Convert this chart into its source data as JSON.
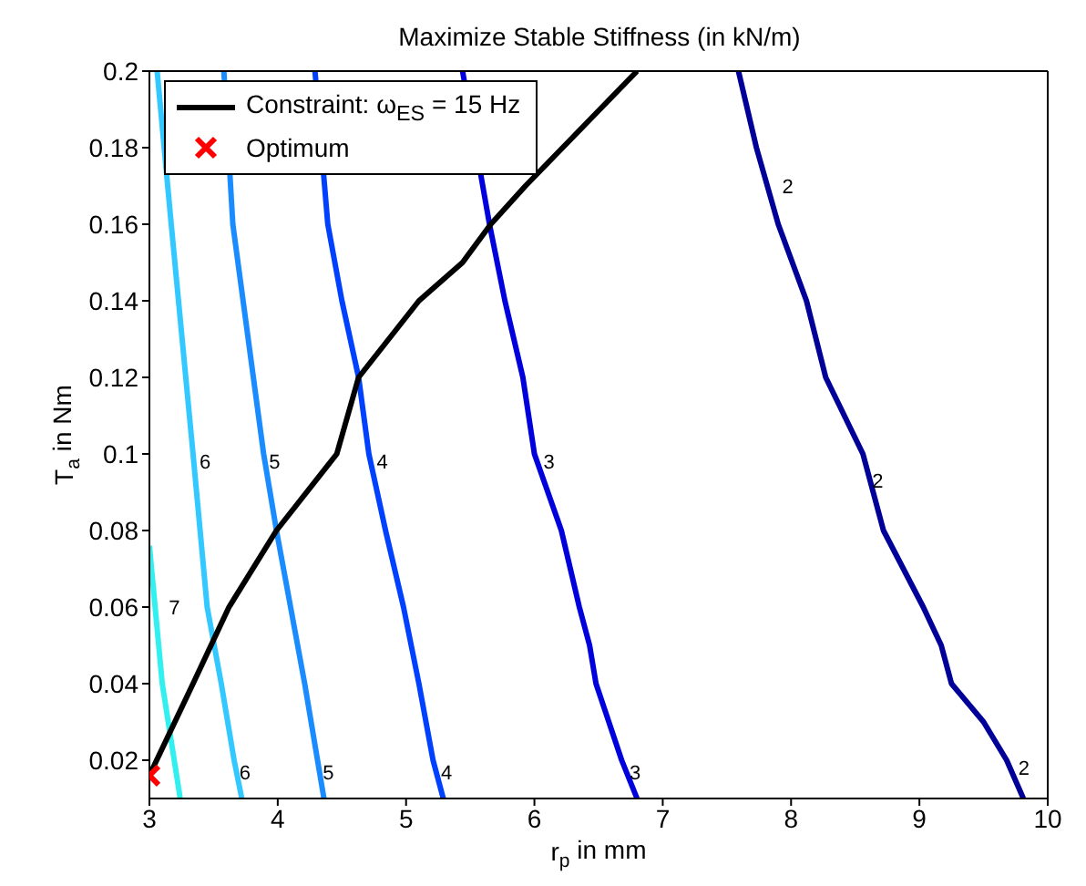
{
  "chart_data": {
    "type": "line",
    "title": "Maximize Stable Stiffness (in kN/m)",
    "xlabel": "r$_{p}$ in mm",
    "ylabel": "T$_{a}$ in Nm",
    "xlim": [
      3,
      10
    ],
    "xticks": [
      3,
      4,
      5,
      6,
      7,
      8,
      9,
      10
    ],
    "ylim": [
      0.01,
      0.2
    ],
    "yticks": [
      0.02,
      0.04,
      0.06,
      0.08,
      0.1,
      0.12,
      0.14,
      0.16,
      0.18,
      0.2
    ],
    "grid": false,
    "legend": "top left",
    "series": [
      {
        "color": "#33f0f0",
        "x": [
          3,
          3.1,
          3.24
        ],
        "values": [
          0.076,
          0.04,
          0.01
        ]
      },
      {
        "color": "#33c8ff",
        "x": [
          3.06,
          3.17,
          3.34,
          3.45,
          3.56,
          3.66,
          3.72
        ],
        "values": [
          0.2,
          0.16,
          0.1,
          0.06,
          0.04,
          0.02,
          0.01
        ]
      },
      {
        "color": "#1a8cff",
        "x": [
          3.58,
          3.65,
          3.89,
          3.99,
          4.1,
          4.21,
          4.31,
          4.36
        ],
        "values": [
          0.2,
          0.16,
          0.1,
          0.08,
          0.06,
          0.04,
          0.02,
          0.01
        ]
      },
      {
        "color": "#0040ff",
        "x": [
          4.29,
          4.39,
          4.5,
          4.63,
          4.71,
          4.84,
          4.98,
          5.1,
          5.21,
          5.29
        ],
        "values": [
          0.2,
          0.16,
          0.14,
          0.12,
          0.1,
          0.08,
          0.06,
          0.04,
          0.02,
          0.01
        ]
      },
      {
        "color": "#0000dd",
        "x": [
          5.44,
          5.65,
          5.77,
          5.91,
          6.0,
          6.21,
          6.35,
          6.43,
          6.48,
          6.68,
          6.8
        ],
        "values": [
          0.2,
          0.16,
          0.14,
          0.12,
          0.1,
          0.08,
          0.06,
          0.05,
          0.04,
          0.02,
          0.01
        ]
      },
      {
        "color": "#000099",
        "x": [
          7.59,
          7.73,
          7.9,
          8.12,
          8.27,
          8.56,
          8.72,
          9.03,
          9.17,
          9.25,
          9.5,
          9.68,
          9.81
        ],
        "values": [
          0.2,
          0.18,
          0.16,
          0.14,
          0.12,
          0.1,
          0.08,
          0.06,
          0.05,
          0.04,
          0.03,
          0.02,
          0.01
        ]
      },
      {
        "name": "Constraint: ω$_{ES}$ = 15 Hz",
        "color": "#000000",
        "x": [
          3,
          3.34,
          3.62,
          3.99,
          4.46,
          4.63,
          5.1,
          5.44,
          5.66,
          5.93,
          6.8
        ],
        "values": [
          0.016,
          0.04,
          0.06,
          0.08,
          0.1,
          0.12,
          0.14,
          0.15,
          0.16,
          0.17,
          0.2
        ]
      },
      {
        "name": "Optimum",
        "type": "scatter",
        "marker": "cross",
        "color": "#ff0000",
        "x": [
          3
        ],
        "values": [
          0.016
        ]
      }
    ],
    "annotations": [
      {
        "text": "2",
        "x": 7.86,
        "y": 0.17
      },
      {
        "text": "2",
        "x": 8.56,
        "y": 0.093
      },
      {
        "text": "2",
        "x": 9.7,
        "y": 0.018
      },
      {
        "text": "3",
        "x": 6.0,
        "y": 0.098
      },
      {
        "text": "3",
        "x": 6.67,
        "y": 0.017
      },
      {
        "text": "4",
        "x": 4.7,
        "y": 0.098
      },
      {
        "text": "4",
        "x": 5.2,
        "y": 0.017
      },
      {
        "text": "5",
        "x": 3.86,
        "y": 0.098
      },
      {
        "text": "5",
        "x": 4.28,
        "y": 0.017
      },
      {
        "text": "6",
        "x": 3.32,
        "y": 0.098
      },
      {
        "text": "6",
        "x": 3.63,
        "y": 0.017
      },
      {
        "text": "7",
        "x": 3.08,
        "y": 0.06
      }
    ]
  }
}
